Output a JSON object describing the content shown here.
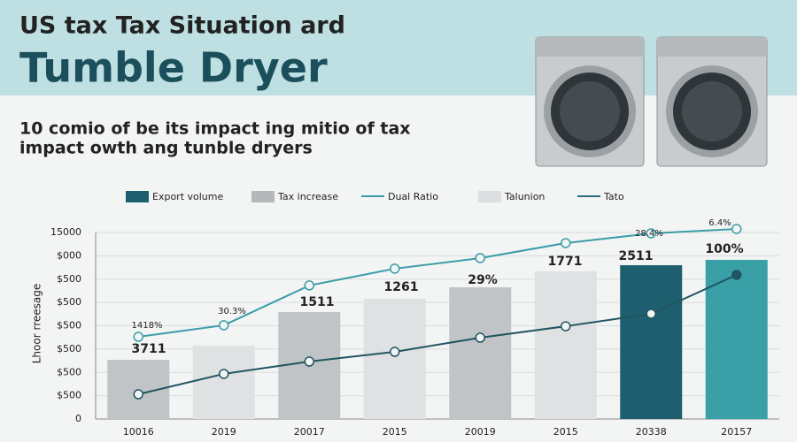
{
  "chart_data": {
    "type": "combo",
    "title": "US tax Tax Situation ard",
    "subtitle": "Tumble Dryer",
    "description": [
      "10 comio of be its impact ing mitio of tax",
      "impact owth ang tunble dryers"
    ],
    "y_label": "Lhoor rreesage",
    "legend": [
      {
        "name": "Export volume",
        "color": "#1d5f6e",
        "kind": "bar"
      },
      {
        "name": "Tax increase",
        "color": "#b4b8bb",
        "kind": "bar"
      },
      {
        "name": "Dual Ratio",
        "color": "#3a9ca8",
        "kind": "line"
      },
      {
        "name": "Talunion",
        "color": "#dcdedf",
        "kind": "bar"
      },
      {
        "name": "Tato",
        "color": "#2a6f7c",
        "kind": "line"
      }
    ],
    "categories": [
      "10016",
      "2019",
      "20017",
      "2015",
      "20019",
      "2015",
      "20338",
      "20157"
    ],
    "values": [
      4760,
      5900,
      8600,
      9670,
      10590,
      11870,
      12370,
      12800
    ],
    "colors": [
      "#c1c4c7",
      "#dfe1e2",
      "#c1c4c7",
      "#dfe1e2",
      "#c1c4c7",
      "#dfe1e2",
      "#1d5f6e",
      "#3aa0a8"
    ],
    "lines": [
      {
        "name": "Dual Ratio",
        "color": "#3a9ca8",
        "values": [
          6610,
          7540,
          10740,
          12090,
          12940,
          14150,
          14930,
          15280
        ]
      },
      {
        "name": "Tato",
        "color": "#1f5561",
        "values": [
          1990,
          3630,
          4620,
          5400,
          6540,
          7460,
          8460,
          11590
        ]
      }
    ],
    "annotations": [
      "1418%",
      "30.3%",
      "3711",
      "1511",
      "1261",
      "29%",
      "1771",
      "2511",
      "100%",
      "28.4%",
      "6.4%"
    ],
    "ylim": [
      0,
      15000
    ],
    "yticks": [
      0,
      {
        "value": 1875,
        "label": "$500"
      },
      {
        "value": 3750,
        "label": "$500"
      },
      {
        "value": 5625,
        "label": "$500"
      },
      {
        "value": 7500,
        "label": "$500"
      },
      {
        "value": 9375,
        "label": "$500"
      },
      {
        "value": 11250,
        "label": "$500"
      },
      {
        "value": 13125,
        "label": "$000"
      },
      15000
    ],
    "grid": true
  }
}
